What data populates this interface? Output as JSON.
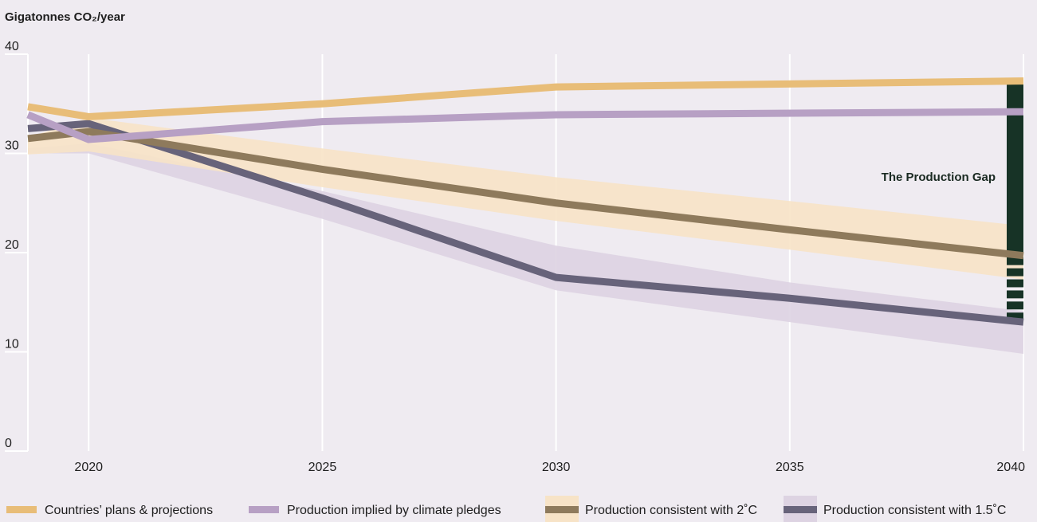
{
  "chart_data": {
    "type": "line",
    "ylabel": "Gigatonnes CO₂/year",
    "ylim": [
      0,
      40
    ],
    "yticks": [
      0,
      10,
      20,
      30,
      40
    ],
    "xlim": [
      2018.7,
      2040
    ],
    "xticks": [
      2020,
      2025,
      2030,
      2035,
      2040
    ],
    "grid": "vertical",
    "series": [
      {
        "name": "Countries’ plans & projections",
        "color": "#e8bd78",
        "x": [
          2018.7,
          2020,
          2025,
          2030,
          2040
        ],
        "values": [
          34.7,
          33.7,
          35.0,
          36.7,
          37.3
        ]
      },
      {
        "name": "Production implied by climate pledges",
        "color": "#b7a0c4",
        "x": [
          2018.7,
          2020,
          2025,
          2030,
          2040
        ],
        "values": [
          33.9,
          31.4,
          33.2,
          33.9,
          34.2
        ]
      },
      {
        "name": "Production consistent with 2˚C",
        "color": "#8e7a5c",
        "x": [
          2018.7,
          2020,
          2025,
          2030,
          2035,
          2040
        ],
        "values": [
          31.5,
          32.2,
          28.4,
          25.0,
          22.3,
          19.7
        ],
        "band_color": "#f7e3c7",
        "band_lower": [
          29.9,
          30.2,
          26.6,
          23.2,
          20.3,
          17.3
        ],
        "band_upper": [
          31.6,
          33.6,
          30.5,
          27.6,
          25.2,
          22.7
        ]
      },
      {
        "name": "Production consistent with 1.5˚C",
        "color": "#67637a",
        "x": [
          2018.7,
          2020,
          2025,
          2030,
          2035,
          2040
        ],
        "values": [
          32.5,
          33.0,
          25.5,
          17.5,
          15.4,
          13.0
        ],
        "band_color": "#ddd3e2",
        "band_lower": [
          30.0,
          30.0,
          23.4,
          16.2,
          13.0,
          9.8
        ],
        "band_upper": [
          30.5,
          31.0,
          26.2,
          20.7,
          17.0,
          14.1
        ]
      }
    ],
    "annotations": [
      {
        "text": "The Production Gap",
        "x": 2040,
        "solid_from": 37.3,
        "solid_to": 19.7,
        "dashed_from": 19.7,
        "dashed_to": 13.0,
        "color": "#173326"
      }
    ],
    "legend": "bottom"
  }
}
